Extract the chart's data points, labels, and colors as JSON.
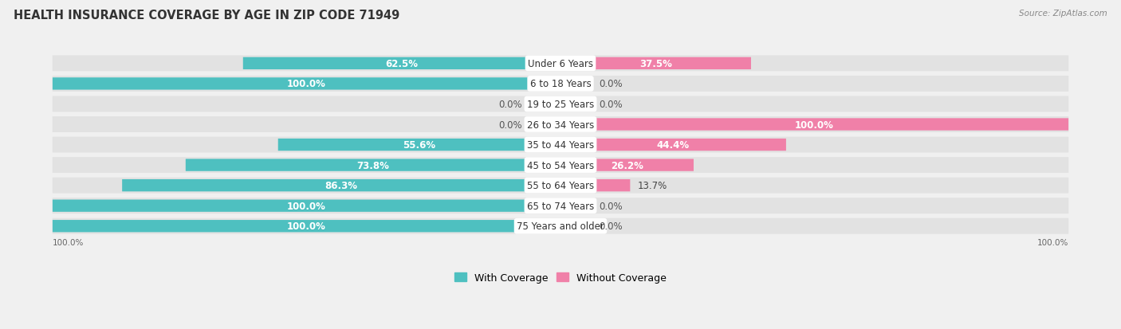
{
  "title": "HEALTH INSURANCE COVERAGE BY AGE IN ZIP CODE 71949",
  "source": "Source: ZipAtlas.com",
  "categories": [
    "Under 6 Years",
    "6 to 18 Years",
    "19 to 25 Years",
    "26 to 34 Years",
    "35 to 44 Years",
    "45 to 54 Years",
    "55 to 64 Years",
    "65 to 74 Years",
    "75 Years and older"
  ],
  "with_coverage": [
    62.5,
    100.0,
    0.0,
    0.0,
    55.6,
    73.8,
    86.3,
    100.0,
    100.0
  ],
  "without_coverage": [
    37.5,
    0.0,
    0.0,
    100.0,
    44.4,
    26.2,
    13.7,
    0.0,
    0.0
  ],
  "color_with": "#4ec0c0",
  "color_with_light": "#a8dede",
  "color_without": "#f080a8",
  "color_without_light": "#f5b8ce",
  "background_color": "#f0f0f0",
  "bar_bg_color": "#e2e2e2",
  "title_fontsize": 10.5,
  "label_fontsize": 8.5,
  "cat_fontsize": 8.5,
  "bar_height": 0.58,
  "legend_fontsize": 9,
  "stub_size": 6.0
}
